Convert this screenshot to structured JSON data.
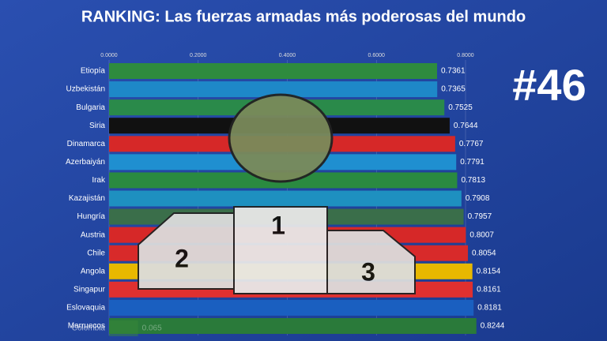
{
  "chart_data": {
    "type": "bar",
    "orientation": "horizontal",
    "title": "RANKING: Las fuerzas armadas más poderosas del mundo",
    "annotation": "#46",
    "categories": [
      "Etiopía",
      "Uzbekistán",
      "Bulgaria",
      "Siria",
      "Dinamarca",
      "Azerbaiyán",
      "Irak",
      "Kazajistán",
      "Hungría",
      "Austria",
      "Chile",
      "Angola",
      "Singapur",
      "Eslovaquia",
      "Marruecos"
    ],
    "values": [
      0.7361,
      0.7365,
      0.7525,
      0.7644,
      0.7767,
      0.7791,
      0.7813,
      0.7908,
      0.7957,
      0.8007,
      0.8054,
      0.8154,
      0.8161,
      0.8181,
      0.8244
    ],
    "colors": [
      "#2e8b3e",
      "#1e88c8",
      "#2a8a4a",
      "#111111",
      "#d62828",
      "#1f8fd0",
      "#2a8a40",
      "#1e90c0",
      "#3a6e4a",
      "#d62828",
      "#d82a2a",
      "#e8b800",
      "#e03030",
      "#1a5fc0",
      "#2a7a3a"
    ],
    "entering": {
      "category": "Colombia",
      "value": 0.065,
      "color": "#3a8a3a"
    },
    "xlim": [
      0,
      0.8
    ],
    "xticks": [
      {
        "value": 0,
        "label": "0.0000"
      },
      {
        "value": 0.2,
        "label": "0.2000"
      },
      {
        "value": 0.4,
        "label": "0.4000"
      },
      {
        "value": 0.6,
        "label": "0.6000"
      },
      {
        "value": 0.8,
        "label": "0.8000"
      }
    ]
  },
  "overlay": {
    "podium": [
      "1",
      "2",
      "3"
    ]
  }
}
